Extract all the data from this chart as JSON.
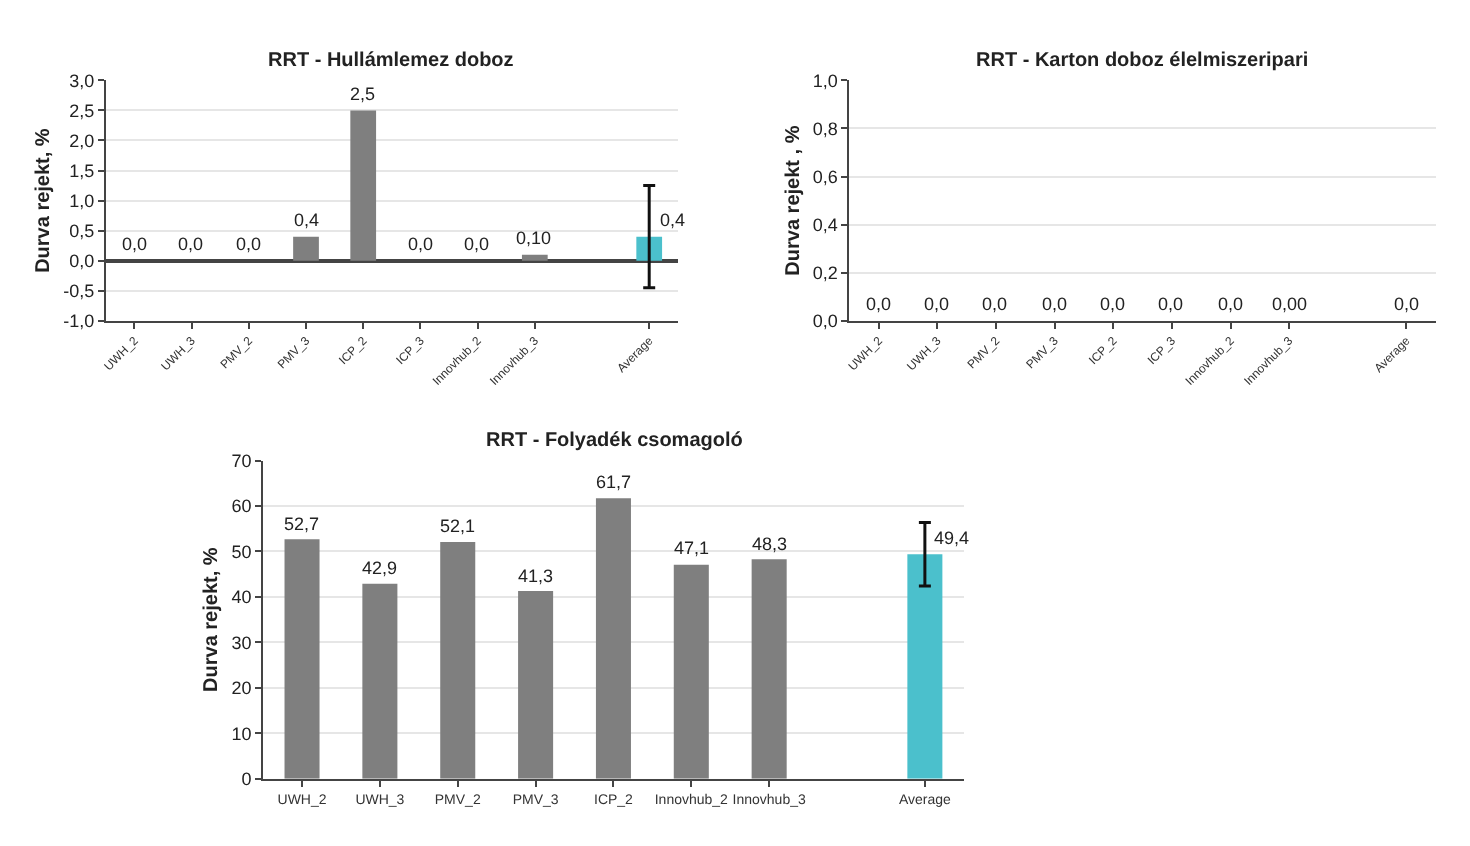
{
  "chart_data": [
    {
      "type": "bar",
      "title": "RRT - Hullámlemez doboz",
      "ylabel": "Durva rejekt, %",
      "categories": [
        "UWH_2",
        "UWH_3",
        "PMV_2",
        "PMV_3",
        "ICP_2",
        "ICP_3",
        "Innovhub_2",
        "Innovhub_3",
        null,
        "Average"
      ],
      "values": [
        0,
        0,
        0,
        0.4,
        2.5,
        0,
        0,
        0.1,
        null,
        0.4
      ],
      "colors": [
        "#7f7f7f",
        "#7f7f7f",
        "#7f7f7f",
        "#7f7f7f",
        "#7f7f7f",
        "#7f7f7f",
        "#7f7f7f",
        "#7f7f7f",
        "#7f7f7f",
        "#4bc0cc"
      ],
      "value_labels": [
        "0,0",
        "0,0",
        "0,0",
        "0,4",
        "2,5",
        "0,0",
        "0,0",
        "0,10",
        null,
        "0,4"
      ],
      "errors": [
        null,
        null,
        null,
        null,
        null,
        null,
        null,
        null,
        null,
        0.85
      ],
      "ylim": [
        -1,
        3
      ],
      "yticks": [
        {
          "value": -1,
          "label": "-1,0"
        },
        {
          "value": -0.5,
          "label": "-0,5"
        },
        {
          "value": 0,
          "label": "0,0"
        },
        {
          "value": 0.5,
          "label": "0,5"
        },
        {
          "value": 1,
          "label": "1,0"
        },
        {
          "value": 1.5,
          "label": "1,5"
        },
        {
          "value": 2,
          "label": "2,0"
        },
        {
          "value": 2.5,
          "label": "2,5"
        },
        {
          "value": 3,
          "label": "3,0"
        }
      ],
      "grid": "y"
    },
    {
      "type": "bar",
      "title": "RRT - Karton doboz élelmiszeripari",
      "ylabel": "Durva rejekt , %",
      "categories": [
        "UWH_2",
        "UWH_3",
        "PMV_2",
        "PMV_3",
        "ICP_2",
        "ICP_3",
        "Innovhub_2",
        "Innovhub_3",
        null,
        "Average"
      ],
      "values": [
        0,
        0,
        0,
        0,
        0,
        0,
        0,
        0,
        null,
        0
      ],
      "colors": [
        "#7f7f7f",
        "#7f7f7f",
        "#7f7f7f",
        "#7f7f7f",
        "#7f7f7f",
        "#7f7f7f",
        "#7f7f7f",
        "#7f7f7f",
        "#7f7f7f",
        "#4bc0cc"
      ],
      "value_labels": [
        "0,0",
        "0,0",
        "0,0",
        "0,0",
        "0,0",
        "0,0",
        "0,0",
        "0,00",
        null,
        "0,0"
      ],
      "ylim": [
        0,
        1
      ],
      "yticks": [
        {
          "value": 0,
          "label": "0,0"
        },
        {
          "value": 0.2,
          "label": "0,2"
        },
        {
          "value": 0.4,
          "label": "0,4"
        },
        {
          "value": 0.6,
          "label": "0,6"
        },
        {
          "value": 0.8,
          "label": "0,8"
        },
        {
          "value": 1,
          "label": "1,0"
        }
      ],
      "grid": "y"
    },
    {
      "type": "bar",
      "title": "RRT - Folyadék csomagoló",
      "ylabel": "Durva rejekt, %",
      "categories": [
        "UWH_2",
        "UWH_3",
        "PMV_2",
        "PMV_3",
        "ICP_2",
        "Innovhub_2",
        "Innovhub_3",
        null,
        "Average"
      ],
      "values": [
        52.7,
        42.9,
        52.1,
        41.3,
        61.7,
        47.1,
        48.3,
        null,
        49.4
      ],
      "colors": [
        "#7f7f7f",
        "#7f7f7f",
        "#7f7f7f",
        "#7f7f7f",
        "#7f7f7f",
        "#7f7f7f",
        "#7f7f7f",
        "#7f7f7f",
        "#4bc0cc"
      ],
      "value_labels": [
        "52,7",
        "42,9",
        "52,1",
        "41,3",
        "61,7",
        "47,1",
        "48,3",
        null,
        "49,4"
      ],
      "errors": [
        null,
        null,
        null,
        null,
        null,
        null,
        null,
        null,
        7
      ],
      "ylim": [
        0,
        70
      ],
      "yticks": [
        0,
        10,
        20,
        30,
        40,
        50,
        60,
        70
      ],
      "grid": "y"
    }
  ]
}
